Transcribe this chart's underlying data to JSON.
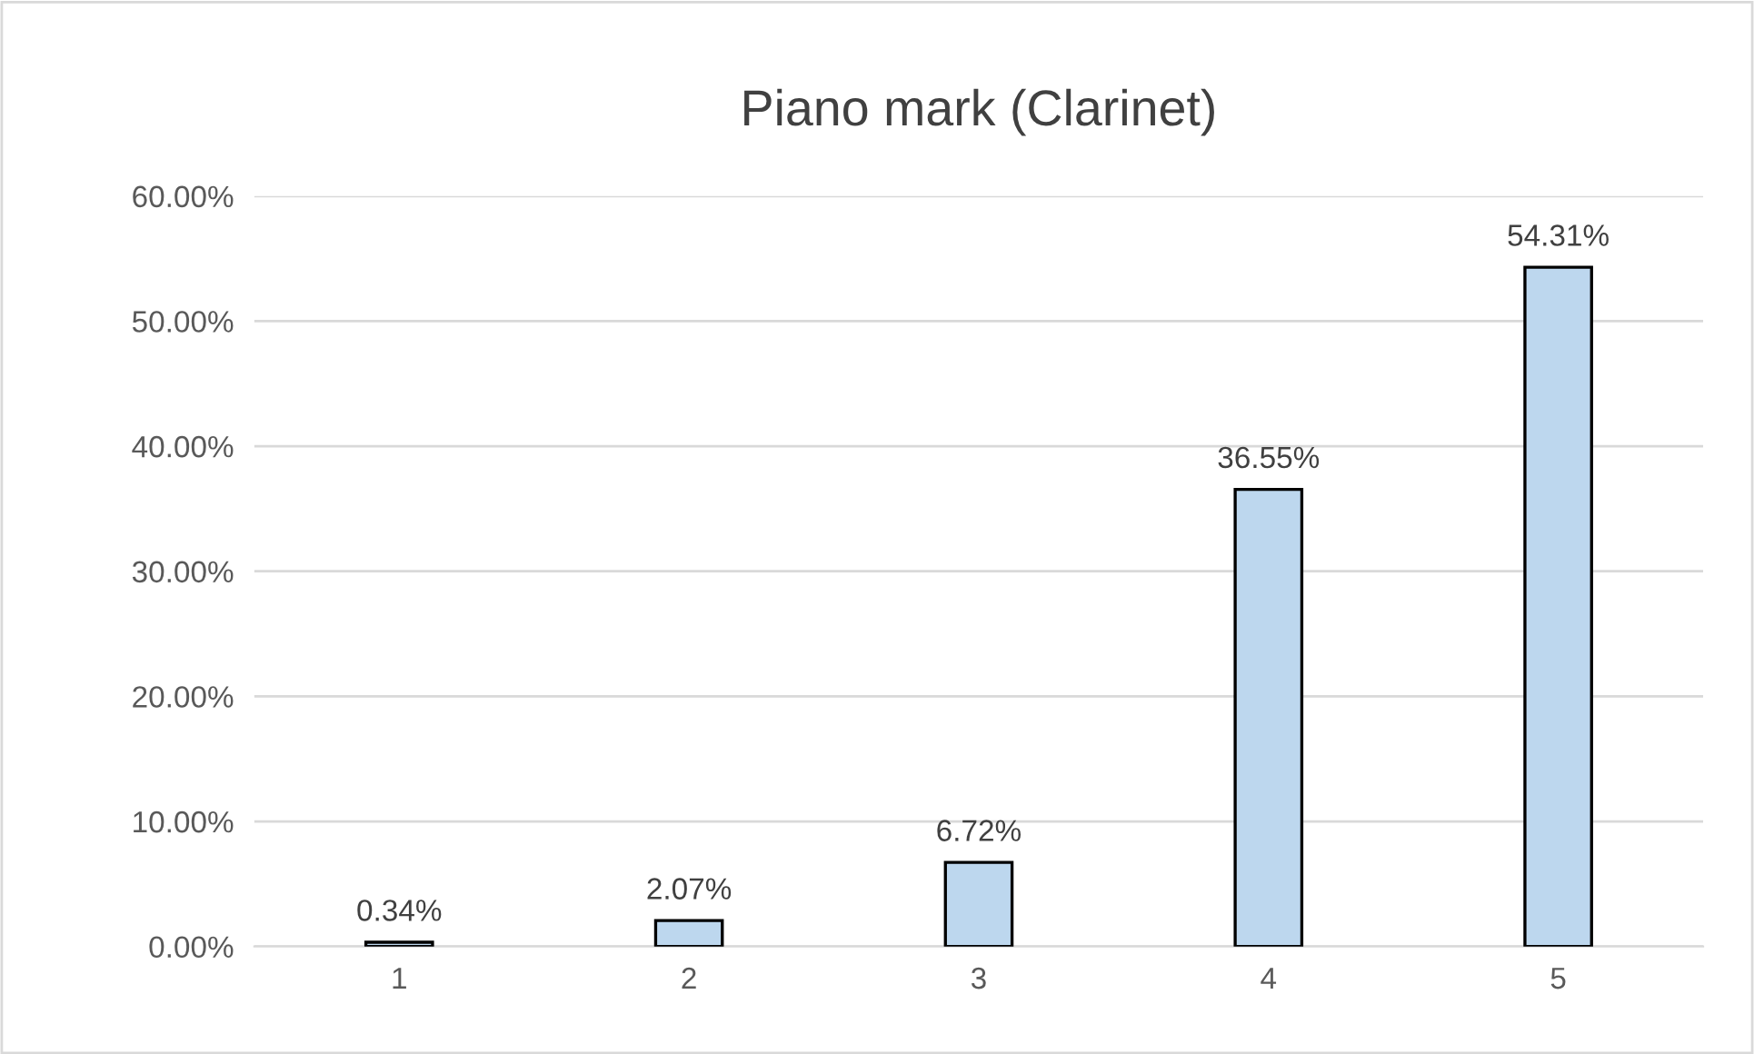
{
  "chart_data": {
    "type": "bar",
    "title": "Piano mark (Clarinet)",
    "categories": [
      "1",
      "2",
      "3",
      "4",
      "5"
    ],
    "values": [
      0.34,
      2.07,
      6.72,
      36.55,
      54.31
    ],
    "value_labels": [
      "0.34%",
      "2.07%",
      "6.72%",
      "36.55%",
      "54.31%"
    ],
    "color": "#bdd7ee",
    "ylim": [
      0,
      60
    ],
    "yticks": [
      {
        "value": 0,
        "label": "0.00%"
      },
      {
        "value": 10,
        "label": "10.00%"
      },
      {
        "value": 20,
        "label": "20.00%"
      },
      {
        "value": 30,
        "label": "30.00%"
      },
      {
        "value": 40,
        "label": "40.00%"
      },
      {
        "value": 50,
        "label": "50.00%"
      },
      {
        "value": 60,
        "label": "60.00%"
      }
    ],
    "grid": "y",
    "legend": false
  }
}
